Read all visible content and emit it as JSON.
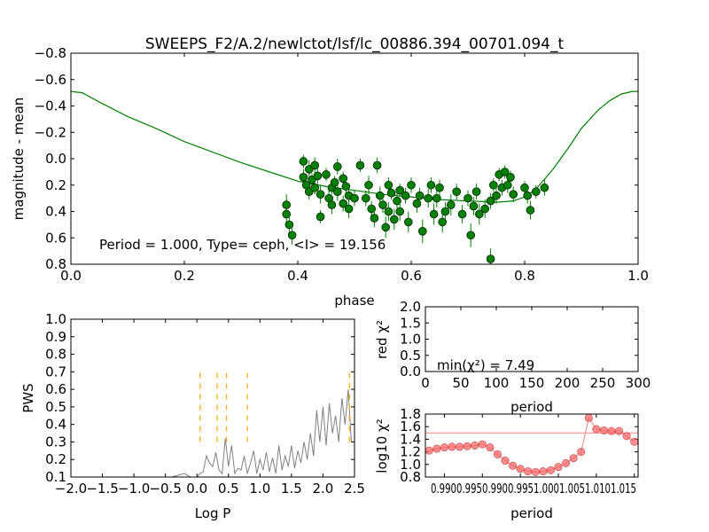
{
  "chart_data": [
    {
      "id": "lightcurve",
      "type": "scatter",
      "title": "SWEEPS_F2/A.2/newlctot/lsf/lc_00886.394_00701.094_t",
      "xlabel": "phase",
      "ylabel": "magnitude - mean",
      "xlim": [
        0.0,
        1.0
      ],
      "ylim": [
        0.8,
        -0.8
      ],
      "y_inverted": true,
      "xticks": [
        "0.0",
        "0.2",
        "0.4",
        "0.6",
        "0.8",
        "1.0"
      ],
      "xtick_values": [
        0.0,
        0.2,
        0.4,
        0.6,
        0.8,
        1.0
      ],
      "yticks": [
        "−0.8",
        "−0.6",
        "−0.4",
        "−0.2",
        "0.0",
        "0.2",
        "0.4",
        "0.6",
        "0.8"
      ],
      "ytick_values": [
        -0.8,
        -0.6,
        -0.4,
        -0.2,
        0.0,
        0.2,
        0.4,
        0.6,
        0.8
      ],
      "annotation": "Period = 1.000, Type= ceph, <I> = 19.156",
      "model": {
        "color": "#008000",
        "x": [
          0.0,
          0.02,
          0.05,
          0.1,
          0.15,
          0.2,
          0.25,
          0.3,
          0.35,
          0.4,
          0.45,
          0.5,
          0.55,
          0.6,
          0.65,
          0.7,
          0.75,
          0.78,
          0.8,
          0.82,
          0.85,
          0.88,
          0.9,
          0.93,
          0.95,
          0.97,
          0.99,
          1.0
        ],
        "y": [
          -0.51,
          -0.5,
          -0.43,
          -0.32,
          -0.23,
          -0.13,
          -0.05,
          0.03,
          0.1,
          0.17,
          0.21,
          0.24,
          0.27,
          0.29,
          0.31,
          0.32,
          0.33,
          0.32,
          0.29,
          0.23,
          0.08,
          -0.1,
          -0.23,
          -0.37,
          -0.44,
          -0.49,
          -0.51,
          -0.51
        ]
      },
      "points": {
        "color": "#008000",
        "x": [
          0.38,
          0.38,
          0.385,
          0.39,
          0.41,
          0.41,
          0.415,
          0.42,
          0.42,
          0.425,
          0.43,
          0.43,
          0.435,
          0.44,
          0.44,
          0.45,
          0.455,
          0.46,
          0.46,
          0.465,
          0.47,
          0.47,
          0.48,
          0.48,
          0.485,
          0.49,
          0.49,
          0.5,
          0.51,
          0.52,
          0.525,
          0.53,
          0.535,
          0.54,
          0.545,
          0.55,
          0.555,
          0.56,
          0.56,
          0.565,
          0.57,
          0.575,
          0.58,
          0.58,
          0.59,
          0.595,
          0.6,
          0.61,
          0.615,
          0.62,
          0.63,
          0.635,
          0.64,
          0.645,
          0.65,
          0.655,
          0.66,
          0.67,
          0.68,
          0.69,
          0.7,
          0.705,
          0.71,
          0.715,
          0.72,
          0.73,
          0.74,
          0.74,
          0.745,
          0.75,
          0.755,
          0.76,
          0.765,
          0.77,
          0.775,
          0.78,
          0.8,
          0.805,
          0.81,
          0.82,
          0.835
        ],
        "y": [
          0.35,
          0.42,
          0.5,
          0.58,
          0.02,
          0.14,
          0.2,
          0.08,
          0.25,
          0.16,
          0.05,
          0.22,
          0.13,
          0.44,
          0.27,
          0.12,
          0.3,
          0.22,
          0.35,
          0.18,
          0.06,
          0.25,
          0.15,
          0.34,
          0.21,
          0.28,
          0.38,
          0.3,
          0.05,
          0.3,
          0.2,
          0.38,
          0.45,
          0.05,
          0.28,
          0.35,
          0.52,
          0.2,
          0.4,
          0.26,
          0.46,
          0.32,
          0.24,
          0.4,
          0.28,
          0.48,
          0.2,
          0.34,
          0.28,
          0.55,
          0.3,
          0.2,
          0.42,
          0.3,
          0.22,
          0.48,
          0.4,
          0.35,
          0.25,
          0.42,
          0.3,
          0.58,
          0.36,
          0.25,
          0.42,
          0.38,
          0.32,
          0.76,
          0.2,
          0.28,
          0.12,
          0.22,
          0.1,
          0.2,
          0.14,
          0.27,
          0.22,
          0.28,
          0.39,
          0.25,
          0.22
        ],
        "err": [
          0.08,
          0.07,
          0.06,
          0.07,
          0.05,
          0.06,
          0.05,
          0.07,
          0.06,
          0.05,
          0.06,
          0.05,
          0.06,
          0.05,
          0.07,
          0.05,
          0.06,
          0.05,
          0.07,
          0.05,
          0.06,
          0.07,
          0.05,
          0.06,
          0.05,
          0.06,
          0.07,
          0.06,
          0.05,
          0.06,
          0.07,
          0.06,
          0.07,
          0.06,
          0.07,
          0.06,
          0.08,
          0.06,
          0.07,
          0.05,
          0.08,
          0.06,
          0.05,
          0.07,
          0.06,
          0.08,
          0.06,
          0.07,
          0.06,
          0.09,
          0.07,
          0.06,
          0.08,
          0.07,
          0.06,
          0.08,
          0.07,
          0.08,
          0.06,
          0.07,
          0.06,
          0.09,
          0.07,
          0.06,
          0.08,
          0.07,
          0.06,
          0.08,
          0.05,
          0.06,
          0.05,
          0.06,
          0.05,
          0.06,
          0.05,
          0.06,
          0.05,
          0.06,
          0.07,
          0.05,
          0.06
        ]
      }
    },
    {
      "id": "periodogram",
      "type": "line",
      "xlabel": "Log P",
      "ylabel": "PWS",
      "xlim": [
        -2.0,
        2.5
      ],
      "ylim": [
        0.1,
        1.0
      ],
      "xticks": [
        "−2.0",
        "−1.5",
        "−1.0",
        "−0.5",
        "0.0",
        "0.5",
        "1.0",
        "1.5",
        "2.0",
        "2.5"
      ],
      "xtick_values": [
        -2.0,
        -1.5,
        -1.0,
        -0.5,
        0.0,
        0.5,
        1.0,
        1.5,
        2.0,
        2.5
      ],
      "yticks": [
        "0.1",
        "0.2",
        "0.3",
        "0.4",
        "0.5",
        "0.6",
        "0.7",
        "0.8",
        "0.9",
        "1.0"
      ],
      "ytick_values": [
        0.1,
        0.2,
        0.3,
        0.4,
        0.5,
        0.6,
        0.7,
        0.8,
        0.9,
        1.0
      ],
      "line_color": "#808080",
      "x": [
        -0.4,
        -0.3,
        -0.2,
        -0.1,
        0.0,
        0.05,
        0.1,
        0.15,
        0.2,
        0.25,
        0.3,
        0.35,
        0.4,
        0.45,
        0.5,
        0.55,
        0.6,
        0.65,
        0.7,
        0.75,
        0.8,
        0.85,
        0.9,
        0.95,
        1.0,
        1.05,
        1.1,
        1.15,
        1.2,
        1.25,
        1.3,
        1.35,
        1.4,
        1.45,
        1.5,
        1.55,
        1.6,
        1.65,
        1.7,
        1.75,
        1.8,
        1.85,
        1.9,
        1.95,
        2.0,
        2.05,
        2.1,
        2.15,
        2.2,
        2.25,
        2.3,
        2.35,
        2.4,
        2.45
      ],
      "y": [
        0.1,
        0.11,
        0.12,
        0.1,
        0.1,
        0.12,
        0.13,
        0.22,
        0.18,
        0.16,
        0.24,
        0.14,
        0.12,
        0.32,
        0.16,
        0.28,
        0.12,
        0.15,
        0.14,
        0.22,
        0.12,
        0.18,
        0.25,
        0.12,
        0.2,
        0.14,
        0.24,
        0.13,
        0.21,
        0.12,
        0.28,
        0.14,
        0.22,
        0.16,
        0.28,
        0.15,
        0.25,
        0.18,
        0.3,
        0.2,
        0.35,
        0.22,
        0.48,
        0.3,
        0.5,
        0.28,
        0.52,
        0.35,
        0.45,
        0.3,
        0.55,
        0.4,
        0.6,
        0.3
      ],
      "marker_color": "#ffa500",
      "marker_lines_x": [
        0.05,
        0.32,
        0.47,
        0.8,
        2.42
      ],
      "marker_lines_y": [
        0.3,
        0.72
      ]
    },
    {
      "id": "redchi2",
      "type": "scatter",
      "xlabel": "period",
      "ylabel": "red χ²",
      "xlim": [
        0,
        300
      ],
      "ylim": [
        0.0,
        2.0
      ],
      "xticks": [
        "0",
        "50",
        "100",
        "150",
        "200",
        "250",
        "300"
      ],
      "xtick_values": [
        0,
        50,
        100,
        150,
        200,
        250,
        300
      ],
      "yticks": [
        "0.0",
        "0.5",
        "1.0",
        "1.5",
        "2.0"
      ],
      "ytick_values": [
        0.0,
        0.5,
        1.0,
        1.5,
        2.0
      ],
      "annotation": "min(χ²) = 7.49"
    },
    {
      "id": "log10chi2",
      "type": "line",
      "xlabel": "period",
      "ylabel": "log10 χ²",
      "xlim": [
        0.9875,
        1.0155
      ],
      "ylim": [
        0.8,
        1.8
      ],
      "xticks": [
        "0.990",
        "0.995",
        "1.000",
        "1.005",
        "1.010",
        "1.015"
      ],
      "xtick_values": [
        0.99,
        0.995,
        1.0,
        1.005,
        1.01,
        1.015
      ],
      "tick_label_text": "0.9900.9950.9900.9951.0001.0051.0101.015",
      "yticks": [
        "0.8",
        "1.0",
        "1.2",
        "1.4",
        "1.6",
        "1.8"
      ],
      "ytick_values": [
        0.8,
        1.0,
        1.2,
        1.4,
        1.6,
        1.8
      ],
      "line_color": "#ff8080",
      "marker_color": "#ff6060",
      "hline": 1.5,
      "x": [
        0.988,
        0.989,
        0.99,
        0.991,
        0.992,
        0.993,
        0.994,
        0.995,
        0.996,
        0.997,
        0.998,
        0.999,
        1.0,
        1.001,
        1.002,
        1.003,
        1.004,
        1.005,
        1.006,
        1.007,
        1.008,
        1.009,
        1.01,
        1.011,
        1.012,
        1.013,
        1.014,
        1.015
      ],
      "y": [
        1.22,
        1.25,
        1.27,
        1.28,
        1.28,
        1.29,
        1.3,
        1.32,
        1.27,
        1.16,
        1.06,
        0.98,
        0.93,
        0.89,
        0.88,
        0.89,
        0.91,
        0.96,
        1.02,
        1.1,
        1.2,
        1.74,
        1.56,
        1.54,
        1.53,
        1.53,
        1.45,
        1.36
      ]
    }
  ]
}
